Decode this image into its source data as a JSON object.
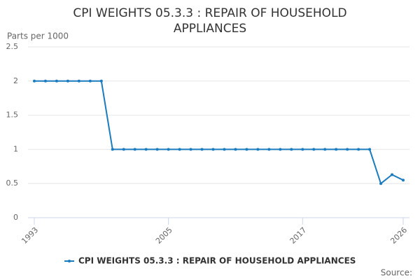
{
  "chart_data": {
    "type": "line",
    "title": "CPI WEIGHTS 05.3.3 : REPAIR OF HOUSEHOLD APPLIANCES",
    "y_label": "Parts per 1000",
    "source": "Source:",
    "x": [
      1993,
      1994,
      1995,
      1996,
      1997,
      1998,
      1999,
      2000,
      2001,
      2002,
      2003,
      2004,
      2005,
      2006,
      2007,
      2008,
      2009,
      2010,
      2011,
      2012,
      2013,
      2014,
      2015,
      2016,
      2017,
      2018,
      2019,
      2020,
      2021,
      2022,
      2023,
      2024,
      2025,
      2026
    ],
    "xlim": [
      1993,
      2026
    ],
    "xticks": [
      1993,
      2005,
      2017,
      2026
    ],
    "ylim": [
      0,
      2.5
    ],
    "yticks": [
      0,
      0.5,
      1,
      1.5,
      2,
      2.5
    ],
    "grid": true,
    "series": [
      {
        "name": "CPI WEIGHTS 05.3.3 : REPAIR OF HOUSEHOLD APPLIANCES",
        "color": "#1a7bbf",
        "values": [
          2,
          2,
          2,
          2,
          2,
          2,
          2,
          1,
          1,
          1,
          1,
          1,
          1,
          1,
          1,
          1,
          1,
          1,
          1,
          1,
          1,
          1,
          1,
          1,
          1,
          1,
          1,
          1,
          1,
          1,
          1,
          0.5,
          0.63,
          0.55
        ]
      }
    ]
  }
}
